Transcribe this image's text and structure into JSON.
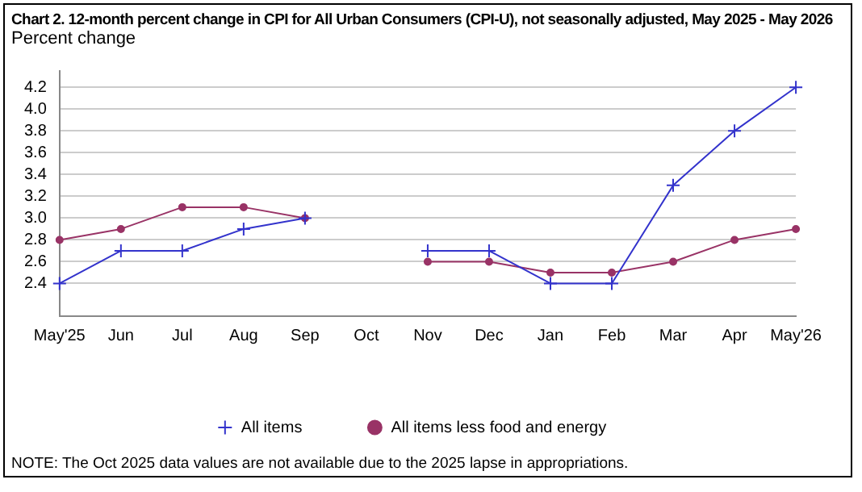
{
  "chart_data": {
    "type": "line",
    "title": "Chart 2. 12-month percent change in CPI for All Urban Consumers (CPI-U), not seasonally adjusted, May 2025 - May 2026",
    "ylabel": "Percent change",
    "categories": [
      "May'25",
      "Jun",
      "Jul",
      "Aug",
      "Sep",
      "Oct",
      "Nov",
      "Dec",
      "Jan",
      "Feb",
      "Mar",
      "Apr",
      "May'26"
    ],
    "series": [
      {
        "name": "All items",
        "color": "#3333cc",
        "marker": "cross",
        "values": [
          2.4,
          2.7,
          2.7,
          2.9,
          3.0,
          null,
          2.7,
          2.7,
          2.4,
          2.4,
          3.3,
          3.8,
          4.2
        ]
      },
      {
        "name": "All items less food and energy",
        "color": "#993366",
        "marker": "circle",
        "values": [
          2.8,
          2.9,
          3.1,
          3.1,
          3.0,
          null,
          2.6,
          2.6,
          2.5,
          2.5,
          2.6,
          2.8,
          2.9
        ]
      }
    ],
    "ylim": [
      2.1,
      4.35
    ],
    "yticks": [
      {
        "value": 2.4,
        "label": "2.4"
      },
      {
        "value": 2.6,
        "label": "2.6"
      },
      {
        "value": 2.8,
        "label": "2.8"
      },
      {
        "value": 3.0,
        "label": "3.0"
      },
      {
        "value": 3.2,
        "label": "3.2"
      },
      {
        "value": 3.4,
        "label": "3.4"
      },
      {
        "value": 3.6,
        "label": "3.6"
      },
      {
        "value": 3.8,
        "label": "3.8"
      },
      {
        "value": 4.0,
        "label": "4.0"
      },
      {
        "value": 4.2,
        "label": "4.2"
      }
    ],
    "grid": "y",
    "legend": "bottom",
    "annotations": [
      "NOTE: The Oct 2025 data values are not available due to the 2025 lapse in appropriations."
    ]
  }
}
